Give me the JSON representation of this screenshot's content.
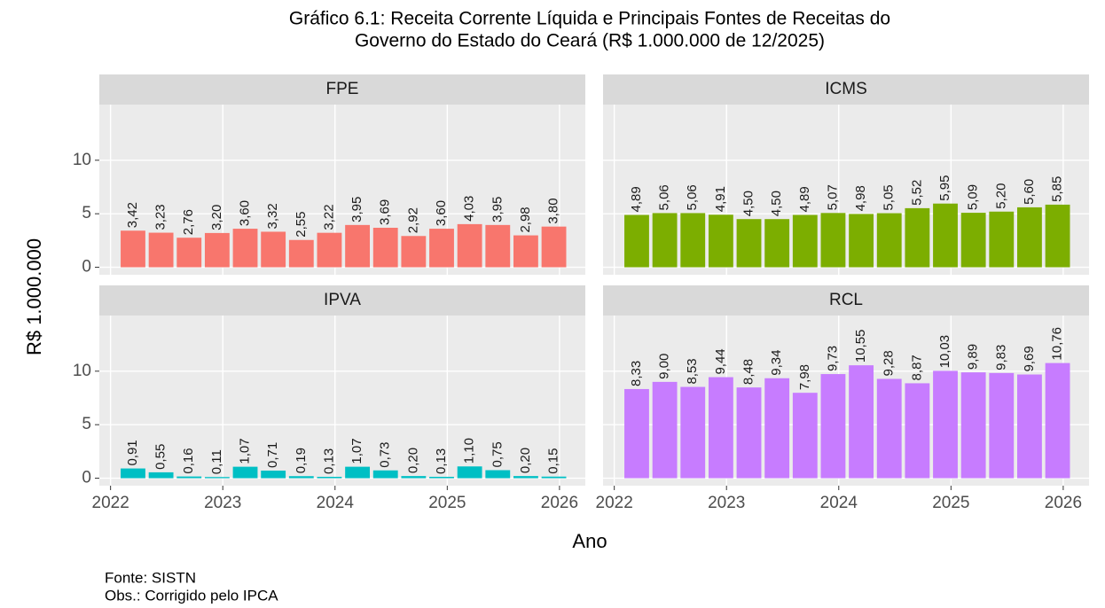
{
  "title": [
    "Gráfico 6.1: Receita Corrente Líquida e Principais Fontes de Receitas do",
    "Governo do Estado do Ceará (R$ 1.000.000 de 12/2025)"
  ],
  "xlabel": "Ano",
  "ylabel": "R$ 1.000.000",
  "footnotes": [
    "Fonte: SISTN",
    "Obs.: Corrigido pelo IPCA"
  ],
  "chart_data": [
    {
      "type": "bar",
      "title": "FPE",
      "color": "#F8766D",
      "x": [
        2022.2,
        2022.45,
        2022.7,
        2022.95,
        2023.2,
        2023.45,
        2023.7,
        2023.95,
        2024.2,
        2024.45,
        2024.7,
        2024.95,
        2025.2,
        2025.45,
        2025.7,
        2025.95
      ],
      "values": [
        3.42,
        3.23,
        2.76,
        3.2,
        3.6,
        3.32,
        2.55,
        3.22,
        3.95,
        3.69,
        2.92,
        3.6,
        4.03,
        3.95,
        2.98,
        3.8
      ],
      "value_labels": [
        "3,42",
        "3,23",
        "2,76",
        "3,20",
        "3,60",
        "3,32",
        "2,55",
        "3,22",
        "3,95",
        "3,69",
        "2,92",
        "3,60",
        "4,03",
        "3,95",
        "2,98",
        "3,80"
      ],
      "xlim": [
        2021.9,
        2026.23
      ],
      "ylim": [
        -0.7,
        15.2
      ],
      "xticks": [
        2022,
        2023,
        2024,
        2025,
        2026
      ],
      "yticks": [
        0,
        5,
        10
      ],
      "grid": true
    },
    {
      "type": "bar",
      "title": "ICMS",
      "color": "#7CAE00",
      "x": [
        2022.2,
        2022.45,
        2022.7,
        2022.95,
        2023.2,
        2023.45,
        2023.7,
        2023.95,
        2024.2,
        2024.45,
        2024.7,
        2024.95,
        2025.2,
        2025.45,
        2025.7,
        2025.95
      ],
      "values": [
        4.89,
        5.06,
        5.06,
        4.91,
        4.5,
        4.5,
        4.89,
        5.07,
        4.98,
        5.05,
        5.52,
        5.95,
        5.09,
        5.2,
        5.6,
        5.85
      ],
      "value_labels": [
        "4,89",
        "5,06",
        "5,06",
        "4,91",
        "4,50",
        "4,50",
        "4,89",
        "5,07",
        "4,98",
        "5,05",
        "5,52",
        "5,95",
        "5,09",
        "5,20",
        "5,60",
        "5,85"
      ],
      "xlim": [
        2021.9,
        2026.23
      ],
      "ylim": [
        -0.7,
        15.2
      ],
      "xticks": [
        2022,
        2023,
        2024,
        2025,
        2026
      ],
      "yticks": [
        0,
        5,
        10
      ],
      "grid": true
    },
    {
      "type": "bar",
      "title": "IPVA",
      "color": "#00BFC4",
      "x": [
        2022.2,
        2022.45,
        2022.7,
        2022.95,
        2023.2,
        2023.45,
        2023.7,
        2023.95,
        2024.2,
        2024.45,
        2024.7,
        2024.95,
        2025.2,
        2025.45,
        2025.7,
        2025.95
      ],
      "values": [
        0.91,
        0.55,
        0.16,
        0.11,
        1.07,
        0.71,
        0.19,
        0.13,
        1.07,
        0.73,
        0.2,
        0.13,
        1.1,
        0.75,
        0.2,
        0.15
      ],
      "value_labels": [
        "0,91",
        "0,55",
        "0,16",
        "0,11",
        "1,07",
        "0,71",
        "0,19",
        "0,13",
        "1,07",
        "0,73",
        "0,20",
        "0,13",
        "1,10",
        "0,75",
        "0,20",
        "0,15"
      ],
      "xlim": [
        2021.9,
        2026.23
      ],
      "ylim": [
        -0.7,
        15.2
      ],
      "xticks": [
        2022,
        2023,
        2024,
        2025,
        2026
      ],
      "yticks": [
        0,
        5,
        10
      ],
      "grid": true
    },
    {
      "type": "bar",
      "title": "RCL",
      "color": "#C77CFF",
      "x": [
        2022.2,
        2022.45,
        2022.7,
        2022.95,
        2023.2,
        2023.45,
        2023.7,
        2023.95,
        2024.2,
        2024.45,
        2024.7,
        2024.95,
        2025.2,
        2025.45,
        2025.7,
        2025.95
      ],
      "values": [
        8.33,
        9.0,
        8.53,
        9.44,
        8.48,
        9.34,
        7.98,
        9.73,
        10.55,
        9.28,
        8.87,
        10.03,
        9.89,
        9.83,
        9.69,
        10.76
      ],
      "value_labels": [
        "8,33",
        "9,00",
        "8,53",
        "9,44",
        "8,48",
        "9,34",
        "7,98",
        "9,73",
        "10,55",
        "9,28",
        "8,87",
        "10,03",
        "9,89",
        "9,83",
        "9,69",
        "10,76"
      ],
      "xlim": [
        2021.9,
        2026.23
      ],
      "ylim": [
        -0.7,
        15.2
      ],
      "xticks": [
        2022,
        2023,
        2024,
        2025,
        2026
      ],
      "yticks": [
        0,
        5,
        10
      ],
      "grid": true
    }
  ]
}
